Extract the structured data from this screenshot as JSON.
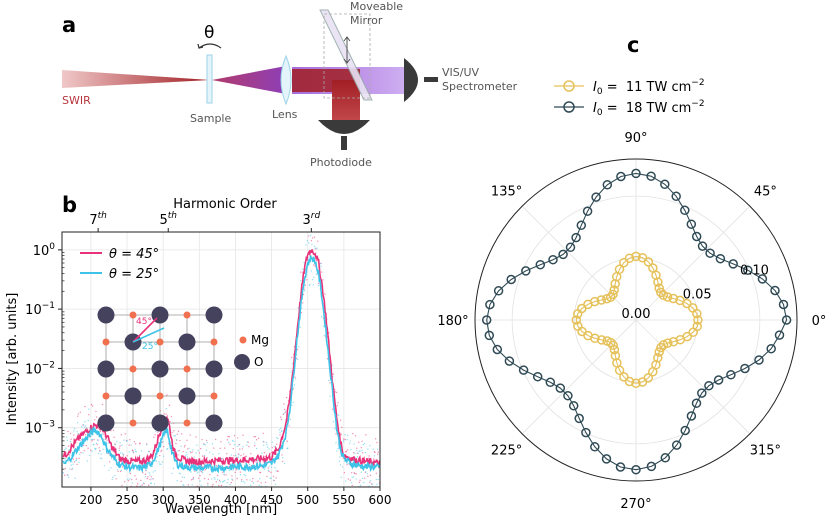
{
  "panels": {
    "a": {
      "letter": "a",
      "theta_symbol": "θ",
      "labels": {
        "swir": "SWIR",
        "sample": "Sample",
        "lens": "Lens",
        "mirror_line1": "Moveable",
        "mirror_line2": "Mirror",
        "spectro_line1": "VIS/UV",
        "spectro_line2": "Spectrometer",
        "photodiode": "Photodiode"
      },
      "colors": {
        "swir": "#b5343c",
        "beam_red": "#a11f24",
        "beam_purple": "#9b5ad6",
        "detector": "#3a3a3a"
      }
    },
    "b": {
      "letter": "b"
    },
    "c": {
      "letter": "c"
    }
  },
  "chart_data": [
    {
      "type": "line",
      "xlabel": "Wavelength [nm]",
      "ylabel": "Intensity [arb. units]",
      "top_axis_label": "Harmonic Order",
      "top_ticks": [
        {
          "x": 210,
          "label": "7",
          "sup": "th"
        },
        {
          "x": 307,
          "label": "5",
          "sup": "th"
        },
        {
          "x": 505,
          "label": "3",
          "sup": "rd"
        }
      ],
      "xlim": [
        160,
        600
      ],
      "ylim": [
        0.0001,
        2
      ],
      "yscale": "log",
      "x_ticks": [
        200,
        250,
        300,
        350,
        400,
        450,
        500,
        550,
        600
      ],
      "x_tick_labels": [
        "200",
        "250",
        "300",
        "350",
        "400",
        "450",
        "500",
        "550",
        "600"
      ],
      "y_tick_labels": [
        {
          "value": 0.001,
          "base": "10",
          "exp": "−3"
        },
        {
          "value": 0.01,
          "base": "10",
          "exp": "−2"
        },
        {
          "value": 0.1,
          "base": "10",
          "exp": "−1"
        },
        {
          "value": 1,
          "base": "10",
          "exp": "0"
        }
      ],
      "grid": true,
      "legend_position": "top-left",
      "series": [
        {
          "name": "θ = 45°",
          "color": "#e8337a",
          "x": [
            165,
            175,
            185,
            195,
            200,
            205,
            210,
            215,
            220,
            225,
            230,
            240,
            250,
            260,
            270,
            280,
            285,
            290,
            295,
            300,
            303,
            306,
            309,
            312,
            315,
            320,
            330,
            340,
            350,
            360,
            380,
            400,
            420,
            440,
            450,
            460,
            470,
            475,
            480,
            485,
            490,
            495,
            500,
            505,
            510,
            515,
            520,
            525,
            530,
            535,
            540,
            545,
            550,
            560,
            570,
            580,
            590,
            600
          ],
          "y": [
            0.00035,
            0.0005,
            0.0007,
            0.0009,
            0.001,
            0.0011,
            0.0011,
            0.001,
            0.0008,
            0.0006,
            0.00045,
            0.0003,
            0.00028,
            0.00027,
            0.00027,
            0.0003,
            0.00035,
            0.0005,
            0.0008,
            0.0012,
            0.0016,
            0.0015,
            0.001,
            0.0006,
            0.0004,
            0.00032,
            0.00028,
            0.00027,
            0.00027,
            0.00027,
            0.00028,
            0.00028,
            0.00029,
            0.0003,
            0.00032,
            0.00045,
            0.0012,
            0.003,
            0.01,
            0.04,
            0.15,
            0.45,
            0.85,
            1.0,
            0.9,
            0.6,
            0.25,
            0.08,
            0.02,
            0.005,
            0.0015,
            0.0006,
            0.00035,
            0.0003,
            0.00028,
            0.00027,
            0.00026,
            0.00025
          ]
        },
        {
          "name": "θ = 25°",
          "color": "#3ec3e8",
          "x": [
            165,
            175,
            185,
            195,
            200,
            205,
            210,
            215,
            220,
            225,
            230,
            240,
            250,
            260,
            270,
            280,
            285,
            290,
            295,
            300,
            303,
            306,
            309,
            312,
            315,
            320,
            330,
            340,
            350,
            360,
            380,
            400,
            420,
            440,
            450,
            460,
            470,
            475,
            480,
            485,
            490,
            495,
            500,
            505,
            510,
            515,
            520,
            525,
            530,
            535,
            540,
            545,
            550,
            560,
            570,
            580,
            590,
            600
          ],
          "y": [
            0.00025,
            0.00035,
            0.0005,
            0.0007,
            0.0008,
            0.0009,
            0.00085,
            0.0007,
            0.0005,
            0.0004,
            0.00032,
            0.00024,
            0.00022,
            0.00021,
            0.00021,
            0.00023,
            0.00027,
            0.00035,
            0.0005,
            0.0007,
            0.0009,
            0.00085,
            0.0006,
            0.0004,
            0.0003,
            0.00024,
            0.00022,
            0.00021,
            0.00021,
            0.00021,
            0.00021,
            0.00022,
            0.00022,
            0.00023,
            0.00025,
            0.00035,
            0.0008,
            0.002,
            0.007,
            0.03,
            0.1,
            0.3,
            0.6,
            0.75,
            0.65,
            0.4,
            0.15,
            0.045,
            0.012,
            0.0035,
            0.001,
            0.00045,
            0.0003,
            0.00025,
            0.00023,
            0.00022,
            0.00022,
            0.00021
          ]
        }
      ],
      "inset": {
        "mg_label": "Mg",
        "o_label": "O",
        "angle_45": "45°",
        "angle_25": "25°",
        "mg_color": "#f07050",
        "o_color": "#45425e"
      }
    },
    {
      "type": "scatter",
      "coordinate_system": "polar",
      "angle_unit": "degrees",
      "rlim": [
        0,
        0.13
      ],
      "r_tick_labels": [
        {
          "value": 0.0,
          "label": "0.00"
        },
        {
          "value": 0.05,
          "label": "0.05"
        },
        {
          "value": 0.1,
          "label": "0.10"
        }
      ],
      "angle_tick_labels": [
        {
          "angle": 0,
          "label": "0°"
        },
        {
          "angle": 45,
          "label": "45°"
        },
        {
          "angle": 90,
          "label": "90°"
        },
        {
          "angle": 135,
          "label": "135°"
        },
        {
          "angle": 180,
          "label": "180°"
        },
        {
          "angle": 225,
          "label": "225°"
        },
        {
          "angle": 270,
          "label": "270°"
        },
        {
          "angle": 315,
          "label": "315°"
        }
      ],
      "legend_position": "top",
      "series": [
        {
          "name_italic": "I",
          "name_sub": "0",
          "name_rest": " =  11 TW cm",
          "name_sup": "−2",
          "color": "#e6c15a",
          "r_mean": 0.039,
          "r_amp": 0.011,
          "theta_start": 0,
          "theta_step": 6,
          "count": 60
        },
        {
          "name_italic": "I",
          "name_sub": "0",
          "name_rest": " =  18 TW cm",
          "name_sup": "−2",
          "color": "#2f4a55",
          "r_mean": 0.1,
          "r_amp": 0.02,
          "theta_start": 0,
          "theta_step": 6,
          "count": 60
        }
      ]
    }
  ]
}
